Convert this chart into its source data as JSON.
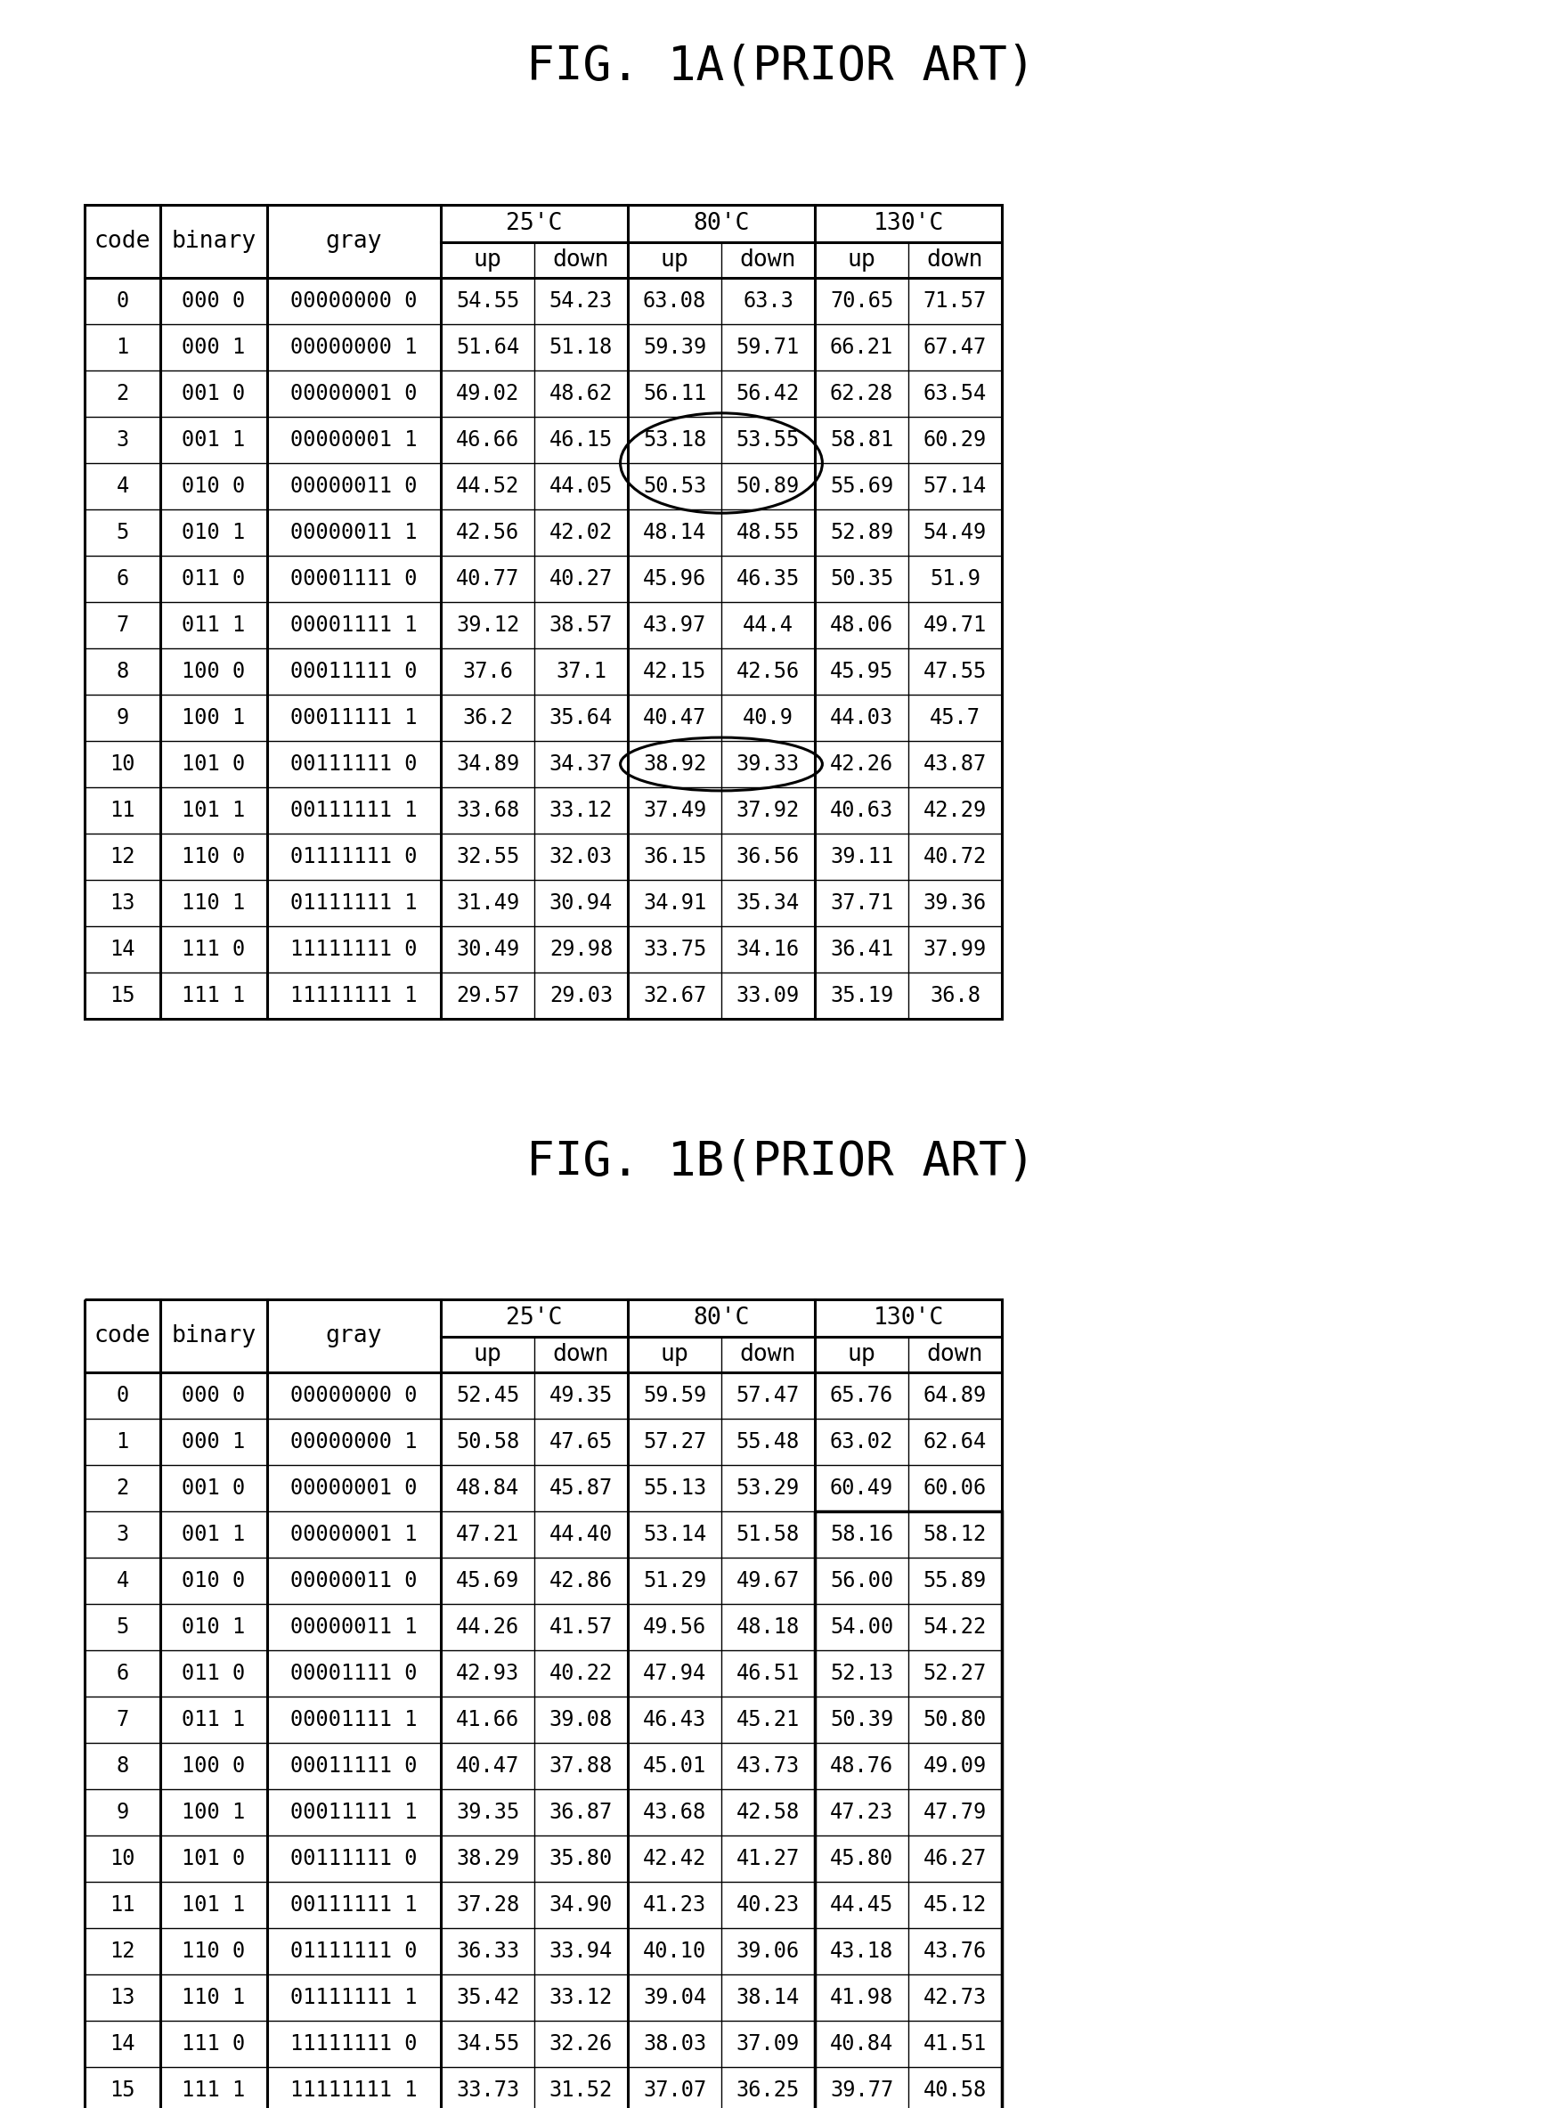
{
  "title1": "FIG. 1A(PRIOR ART)",
  "title2": "FIG. 1B(PRIOR ART)",
  "table1": {
    "rows": [
      [
        0,
        "000 0",
        "00000000 0",
        "54.55",
        "54.23",
        "63.08",
        "63.3",
        "70.65",
        "71.57"
      ],
      [
        1,
        "000 1",
        "00000000 1",
        "51.64",
        "51.18",
        "59.39",
        "59.71",
        "66.21",
        "67.47"
      ],
      [
        2,
        "001 0",
        "00000001 0",
        "49.02",
        "48.62",
        "56.11",
        "56.42",
        "62.28",
        "63.54"
      ],
      [
        3,
        "001 1",
        "00000001 1",
        "46.66",
        "46.15",
        "53.18",
        "53.55",
        "58.81",
        "60.29"
      ],
      [
        4,
        "010 0",
        "00000011 0",
        "44.52",
        "44.05",
        "50.53",
        "50.89",
        "55.69",
        "57.14"
      ],
      [
        5,
        "010 1",
        "00000011 1",
        "42.56",
        "42.02",
        "48.14",
        "48.55",
        "52.89",
        "54.49"
      ],
      [
        6,
        "011 0",
        "00001111 0",
        "40.77",
        "40.27",
        "45.96",
        "46.35",
        "50.35",
        "51.9"
      ],
      [
        7,
        "011 1",
        "00001111 1",
        "39.12",
        "38.57",
        "43.97",
        "44.4",
        "48.06",
        "49.71"
      ],
      [
        8,
        "100 0",
        "00011111 0",
        "37.6",
        "37.1",
        "42.15",
        "42.56",
        "45.95",
        "47.55"
      ],
      [
        9,
        "100 1",
        "00011111 1",
        "36.2",
        "35.64",
        "40.47",
        "40.9",
        "44.03",
        "45.7"
      ],
      [
        10,
        "101 0",
        "00111111 0",
        "34.89",
        "34.37",
        "38.92",
        "39.33",
        "42.26",
        "43.87"
      ],
      [
        11,
        "101 1",
        "00111111 1",
        "33.68",
        "33.12",
        "37.49",
        "37.92",
        "40.63",
        "42.29"
      ],
      [
        12,
        "110 0",
        "01111111 0",
        "32.55",
        "32.03",
        "36.15",
        "36.56",
        "39.11",
        "40.72"
      ],
      [
        13,
        "110 1",
        "01111111 1",
        "31.49",
        "30.94",
        "34.91",
        "35.34",
        "37.71",
        "39.36"
      ],
      [
        14,
        "111 0",
        "11111111 0",
        "30.49",
        "29.98",
        "33.75",
        "34.16",
        "36.41",
        "37.99"
      ],
      [
        15,
        "111 1",
        "11111111 1",
        "29.57",
        "29.03",
        "32.67",
        "33.09",
        "35.19",
        "36.8"
      ]
    ]
  },
  "table2": {
    "rows": [
      [
        0,
        "000 0",
        "00000000 0",
        "52.45",
        "49.35",
        "59.59",
        "57.47",
        "65.76",
        "64.89"
      ],
      [
        1,
        "000 1",
        "00000000 1",
        "50.58",
        "47.65",
        "57.27",
        "55.48",
        "63.02",
        "62.64"
      ],
      [
        2,
        "001 0",
        "00000001 0",
        "48.84",
        "45.87",
        "55.13",
        "53.29",
        "60.49",
        "60.06"
      ],
      [
        3,
        "001 1",
        "00000001 1",
        "47.21",
        "44.40",
        "53.14",
        "51.58",
        "58.16",
        "58.12"
      ],
      [
        4,
        "010 0",
        "00000011 0",
        "45.69",
        "42.86",
        "51.29",
        "49.67",
        "56.00",
        "55.89"
      ],
      [
        5,
        "010 1",
        "00000011 1",
        "44.26",
        "41.57",
        "49.56",
        "48.18",
        "54.00",
        "54.22"
      ],
      [
        6,
        "011 0",
        "00001111 0",
        "42.93",
        "40.22",
        "47.94",
        "46.51",
        "52.13",
        "52.27"
      ],
      [
        7,
        "011 1",
        "00001111 1",
        "41.66",
        "39.08",
        "46.43",
        "45.21",
        "50.39",
        "50.80"
      ],
      [
        8,
        "100 0",
        "00011111 0",
        "40.47",
        "37.88",
        "45.01",
        "43.73",
        "48.76",
        "49.09"
      ],
      [
        9,
        "100 1",
        "00011111 1",
        "39.35",
        "36.87",
        "43.68",
        "42.58",
        "47.23",
        "47.79"
      ],
      [
        10,
        "101 0",
        "00111111 0",
        "38.29",
        "35.80",
        "42.42",
        "41.27",
        "45.80",
        "46.27"
      ],
      [
        11,
        "101 1",
        "00111111 1",
        "37.28",
        "34.90",
        "41.23",
        "40.23",
        "44.45",
        "45.12"
      ],
      [
        12,
        "110 0",
        "01111111 0",
        "36.33",
        "33.94",
        "40.10",
        "39.06",
        "43.18",
        "43.76"
      ],
      [
        13,
        "110 1",
        "01111111 1",
        "35.42",
        "33.12",
        "39.04",
        "38.14",
        "41.98",
        "42.73"
      ],
      [
        14,
        "111 0",
        "11111111 0",
        "34.55",
        "32.26",
        "38.03",
        "37.09",
        "40.84",
        "41.51"
      ],
      [
        15,
        "111 1",
        "11111111 1",
        "33.73",
        "31.52",
        "37.07",
        "36.25",
        "39.77",
        "40.58"
      ]
    ]
  },
  "bg_color": "#ffffff",
  "text_color": "#000000",
  "title_fontsize": 38,
  "header_fontsize": 19,
  "data_fontsize": 17,
  "temp_label1": "25'C",
  "temp_label2": "80'C",
  "temp_label3": "130'C"
}
